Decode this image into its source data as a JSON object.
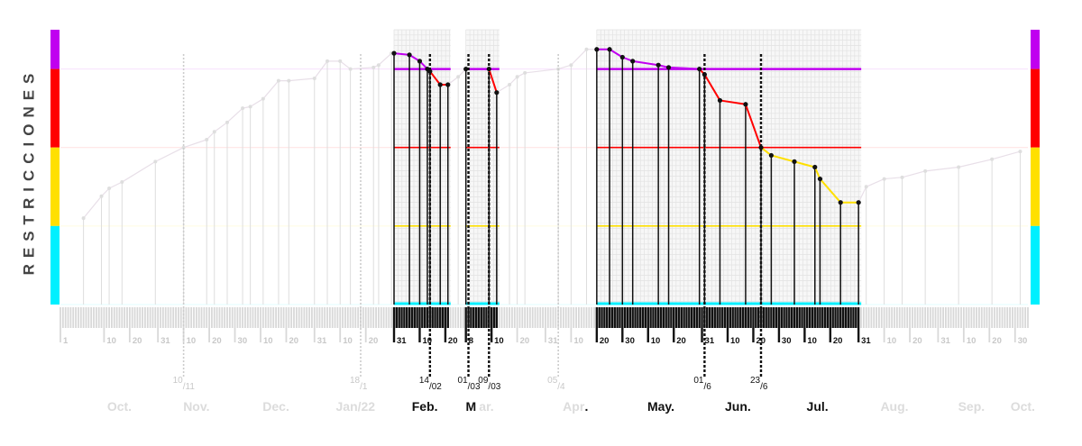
{
  "chart_data": {
    "type": "line",
    "title": "",
    "ylabel": "RESTRICCIONES",
    "xlabel": "",
    "x_range": [
      "2021-09-23",
      "2022-10-05"
    ],
    "y_levels": {
      "violet": [
        4,
        4.5
      ],
      "red": [
        3,
        4
      ],
      "yellow": [
        2,
        3
      ],
      "cyan": [
        1,
        2
      ]
    },
    "level_colors": {
      "violet": "#c000f0",
      "red": "#ff0000",
      "yellow": "#ffe000",
      "cyan": "#00f0ff"
    },
    "highlight_windows": [
      [
        "2022-01-31",
        "2022-02-21"
      ],
      [
        "2022-02-28",
        "2022-03-12"
      ],
      [
        "2022-04-20",
        "2022-07-31"
      ]
    ],
    "series": [
      {
        "points": [
          [
            "2021-10-02",
            2.1
          ],
          [
            "2021-10-09",
            2.38
          ],
          [
            "2021-10-12",
            2.48
          ],
          [
            "2021-10-17",
            2.56
          ],
          [
            "2021-10-30",
            2.82
          ],
          [
            "2021-11-10",
            3.0
          ],
          [
            "2021-11-19",
            3.1
          ],
          [
            "2021-11-22",
            3.2
          ],
          [
            "2021-11-27",
            3.32
          ],
          [
            "2021-12-03",
            3.5
          ],
          [
            "2021-12-06",
            3.52
          ],
          [
            "2021-12-11",
            3.62
          ],
          [
            "2021-12-17",
            3.85
          ],
          [
            "2021-12-21",
            3.85
          ],
          [
            "2021-12-31",
            3.88
          ],
          [
            "2022-01-05",
            4.1
          ],
          [
            "2022-01-10",
            4.1
          ],
          [
            "2022-01-14",
            4.0
          ],
          [
            "2022-01-23",
            4.02
          ],
          [
            "2022-01-25",
            4.05
          ],
          [
            "2022-01-30",
            4.2
          ],
          [
            "2022-01-31",
            4.2
          ],
          [
            "2022-02-06",
            4.18
          ],
          [
            "2022-02-10",
            4.1
          ],
          [
            "2022-02-13",
            4.0
          ],
          [
            "2022-02-14",
            3.97
          ],
          [
            "2022-02-18",
            3.8
          ],
          [
            "2022-02-21",
            3.8
          ],
          [
            "2022-02-25",
            3.9
          ],
          [
            "2022-02-28",
            4.0
          ],
          [
            "2022-03-09",
            4.0
          ],
          [
            "2022-03-12",
            3.7
          ],
          [
            "2022-03-17",
            3.8
          ],
          [
            "2022-03-20",
            3.9
          ],
          [
            "2022-03-23",
            3.95
          ],
          [
            "2022-04-05",
            4.0
          ],
          [
            "2022-04-10",
            4.05
          ],
          [
            "2022-04-16",
            4.25
          ],
          [
            "2022-04-20",
            4.25
          ],
          [
            "2022-04-25",
            4.25
          ],
          [
            "2022-04-30",
            4.15
          ],
          [
            "2022-05-04",
            4.1
          ],
          [
            "2022-05-14",
            4.05
          ],
          [
            "2022-05-18",
            4.02
          ],
          [
            "2022-05-30",
            4.0
          ],
          [
            "2022-06-01",
            3.93
          ],
          [
            "2022-06-07",
            3.6
          ],
          [
            "2022-06-17",
            3.55
          ],
          [
            "2022-06-23",
            3.0
          ],
          [
            "2022-06-27",
            2.9
          ],
          [
            "2022-07-06",
            2.82
          ],
          [
            "2022-07-14",
            2.75
          ],
          [
            "2022-07-16",
            2.6
          ],
          [
            "2022-07-24",
            2.3
          ],
          [
            "2022-07-31",
            2.3
          ],
          [
            "2022-08-03",
            2.5
          ],
          [
            "2022-08-10",
            2.6
          ],
          [
            "2022-08-17",
            2.62
          ],
          [
            "2022-08-26",
            2.7
          ],
          [
            "2022-09-08",
            2.75
          ],
          [
            "2022-09-21",
            2.85
          ],
          [
            "2022-10-02",
            2.95
          ]
        ]
      }
    ],
    "marker_dates": [
      "2021-11-10",
      "2022-01-18",
      "2022-02-14",
      "2022-03-01",
      "2022-03-09",
      "2022-04-05",
      "2022-06-01",
      "2022-06-23"
    ],
    "marker_labels": [
      {
        "date": "2021-11-10",
        "num": "10",
        "den": "11"
      },
      {
        "date": "2022-01-18",
        "num": "18",
        "den": "1"
      },
      {
        "date": "2022-02-14",
        "num": "14",
        "den": "02"
      },
      {
        "date": "2022-03-01",
        "num": "01",
        "den": "03"
      },
      {
        "date": "2022-03-09",
        "num": "09",
        "den": "03"
      },
      {
        "date": "2022-04-05",
        "num": "05",
        "den": "4"
      },
      {
        "date": "2022-06-01",
        "num": "01",
        "den": "6"
      },
      {
        "date": "2022-06-23",
        "num": "23",
        "den": "6"
      }
    ],
    "tick_labels": [
      {
        "date": "2021-09-23",
        "text": "1",
        "active": false
      },
      {
        "date": "2021-10-10",
        "text": "10",
        "active": false
      },
      {
        "date": "2021-10-20",
        "text": "20",
        "active": false
      },
      {
        "date": "2021-10-31",
        "text": "31",
        "active": false
      },
      {
        "date": "2021-11-10",
        "text": "10",
        "active": false
      },
      {
        "date": "2021-11-20",
        "text": "20",
        "active": false
      },
      {
        "date": "2021-11-30",
        "text": "30",
        "active": false
      },
      {
        "date": "2021-12-10",
        "text": "10",
        "active": false
      },
      {
        "date": "2021-12-20",
        "text": "20",
        "active": false
      },
      {
        "date": "2021-12-31",
        "text": "31",
        "active": false
      },
      {
        "date": "2022-01-10",
        "text": "10",
        "active": false
      },
      {
        "date": "2022-01-20",
        "text": "20",
        "active": false
      },
      {
        "date": "2022-01-31",
        "text": "31",
        "active": true
      },
      {
        "date": "2022-02-10",
        "text": "10",
        "active": true
      },
      {
        "date": "2022-02-20",
        "text": "20",
        "active": true
      },
      {
        "date": "2022-02-28",
        "text": "8",
        "active": true
      },
      {
        "date": "2022-03-10",
        "text": "10",
        "active": true
      },
      {
        "date": "2022-03-20",
        "text": "20",
        "active": false
      },
      {
        "date": "2022-03-31",
        "text": "31",
        "active": false
      },
      {
        "date": "2022-04-10",
        "text": "10",
        "active": false
      },
      {
        "date": "2022-04-20",
        "text": "20",
        "active": true
      },
      {
        "date": "2022-04-30",
        "text": "30",
        "active": true
      },
      {
        "date": "2022-05-10",
        "text": "10",
        "active": true
      },
      {
        "date": "2022-05-20",
        "text": "20",
        "active": true
      },
      {
        "date": "2022-05-31",
        "text": "31",
        "active": true
      },
      {
        "date": "2022-06-10",
        "text": "10",
        "active": true
      },
      {
        "date": "2022-06-20",
        "text": "20",
        "active": true
      },
      {
        "date": "2022-06-30",
        "text": "30",
        "active": true
      },
      {
        "date": "2022-07-10",
        "text": "10",
        "active": true
      },
      {
        "date": "2022-07-20",
        "text": "20",
        "active": true
      },
      {
        "date": "2022-07-31",
        "text": "31",
        "active": true
      },
      {
        "date": "2022-08-10",
        "text": "10",
        "active": false
      },
      {
        "date": "2022-08-20",
        "text": "20",
        "active": false
      },
      {
        "date": "2022-08-31",
        "text": "31",
        "active": false
      },
      {
        "date": "2022-09-10",
        "text": "10",
        "active": false
      },
      {
        "date": "2022-09-20",
        "text": "20",
        "active": false
      },
      {
        "date": "2022-09-30",
        "text": "30",
        "active": false
      }
    ],
    "month_labels": [
      {
        "date": "2021-10-16",
        "text": "Oct.",
        "active": false
      },
      {
        "date": "2021-11-15",
        "text": "Nov.",
        "active": false
      },
      {
        "date": "2021-12-16",
        "text": "Dec.",
        "active": false
      },
      {
        "date": "2022-01-16",
        "text": "Jan/22",
        "active": false
      },
      {
        "date": "2022-02-12",
        "text": "Feb.",
        "active": true
      },
      {
        "date": "2022-03-02",
        "text": "M",
        "active": true
      },
      {
        "date": "2022-03-08",
        "text": "ar.",
        "active": false
      },
      {
        "date": "2022-04-11",
        "text": "Apr",
        "active": false
      },
      {
        "date": "2022-04-16",
        "text": ".",
        "active": true
      },
      {
        "date": "2022-05-15",
        "text": "May.",
        "active": true
      },
      {
        "date": "2022-06-14",
        "text": "Jun.",
        "active": true
      },
      {
        "date": "2022-07-15",
        "text": "Jul.",
        "active": true
      },
      {
        "date": "2022-08-14",
        "text": "Aug.",
        "active": false
      },
      {
        "date": "2022-09-13",
        "text": "Sep.",
        "active": false
      },
      {
        "date": "2022-10-03",
        "text": "Oct.",
        "active": false
      }
    ]
  }
}
